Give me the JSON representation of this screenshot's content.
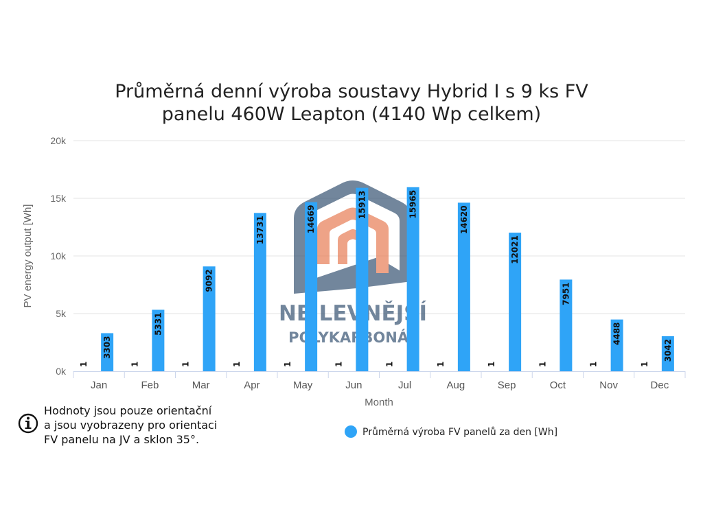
{
  "chart_data": {
    "type": "bar",
    "title_lines": [
      "Průměrná denní výroba soustavy Hybrid I s 9 ks FV",
      "panelu 460W Leapton (4140 Wp celkem)"
    ],
    "xlabel": "Month",
    "ylabel": "PV energy output [Wh]",
    "ylim": [
      0,
      20000
    ],
    "yticks": [
      0,
      5000,
      10000,
      15000,
      20000
    ],
    "ytick_labels": [
      "0k",
      "5k",
      "10k",
      "15k",
      "20k"
    ],
    "categories": [
      "Jan",
      "Feb",
      "Mar",
      "Apr",
      "May",
      "Jun",
      "Jul",
      "Aug",
      "Sep",
      "Oct",
      "Nov",
      "Dec"
    ],
    "series": [
      {
        "values": [
          1,
          1,
          1,
          1,
          1,
          1,
          1,
          1,
          1,
          1,
          1,
          1
        ],
        "data_labels": [
          "1",
          "1",
          "1",
          "1",
          "1",
          "1",
          "1",
          "1",
          "1",
          "1",
          "1",
          "1"
        ]
      },
      {
        "name": "Průměrná výroba FV panelů za den [Wh]",
        "color": "#2fa4f7",
        "values": [
          3303,
          5331,
          9092,
          13731,
          14669,
          15913,
          15965,
          14620,
          12021,
          7951,
          4488,
          3042
        ],
        "data_labels": [
          "3303",
          "5331",
          "9092",
          "13731",
          "14669",
          "15913",
          "15965",
          "14620",
          "12021",
          "7951",
          "4488",
          "3042"
        ]
      }
    ],
    "grid": true,
    "legend_position": "bottom-right"
  },
  "note": {
    "icon": "info-icon",
    "lines": [
      "Hodnoty jsou pouze orientační",
      "a jsou vyobrazeny pro orientaci",
      "FV panelu na JV a sklon 35°."
    ]
  },
  "watermark": {
    "line1": "NEJLEVNĚJŠÍ",
    "line2": "POLYKARBONÁT",
    "colors": {
      "house": "#3d5877",
      "inner": "#e8805a"
    }
  }
}
